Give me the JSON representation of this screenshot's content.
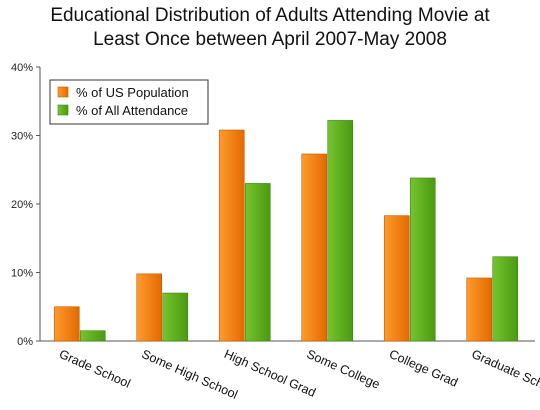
{
  "chart_data": {
    "type": "bar",
    "title_line1": "Educational Distribution of Adults Attending Movie at",
    "title_line2": "Least Once between April 2007-May 2008",
    "categories": [
      "Grade School",
      "Some High School",
      "High School Grad",
      "Some College",
      "College Grad",
      "Graduate School"
    ],
    "series": [
      {
        "name": "% of US Population",
        "values": [
          5.0,
          9.8,
          30.8,
          27.3,
          18.3,
          9.2
        ]
      },
      {
        "name": "% of All Attendance",
        "values": [
          1.5,
          7.0,
          23.0,
          32.2,
          23.8,
          12.3
        ]
      }
    ],
    "y_ticks": [
      "0%",
      "10%",
      "20%",
      "30%",
      "40%"
    ],
    "ylim": [
      0,
      40
    ],
    "grid": false,
    "legend_position": "top-left"
  },
  "colors": {
    "series_1": "#f47c0b",
    "series_2": "#5db01c",
    "axis": "#555555"
  }
}
